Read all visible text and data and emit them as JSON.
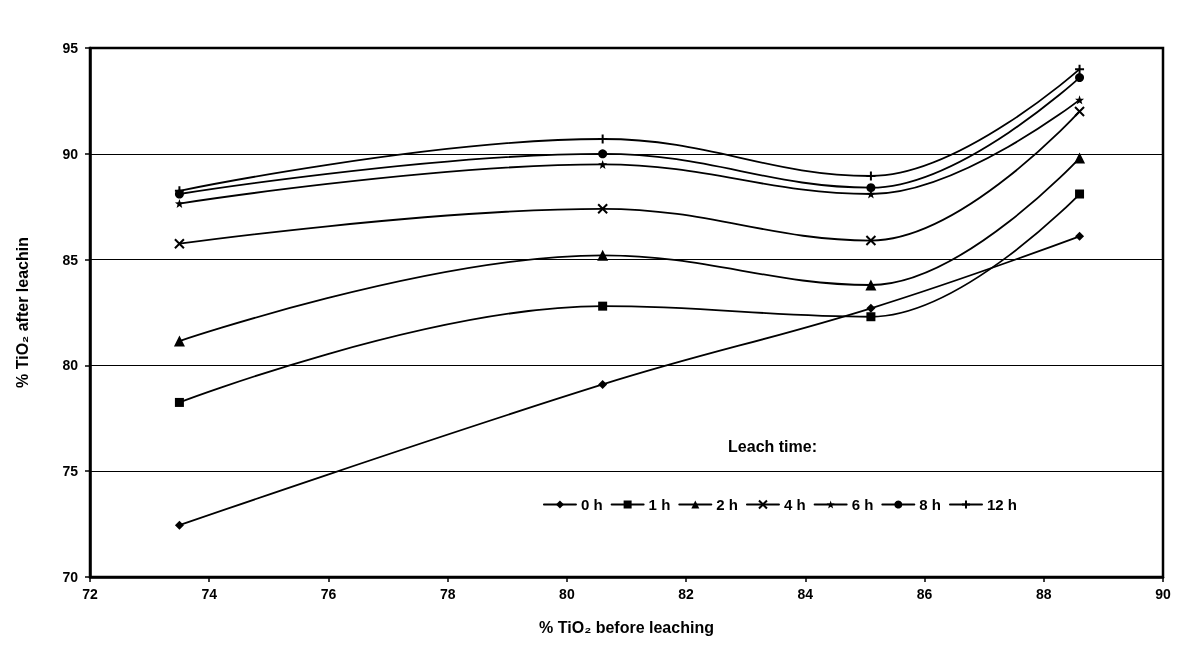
{
  "chart_data": {
    "type": "line",
    "xlabel": "% TiO₂ before leaching",
    "ylabel": "% TiO₂ after leachin",
    "legend_title": "Leach time:",
    "x": [
      73.5,
      80.6,
      85.1,
      88.6
    ],
    "series": [
      {
        "name": "0 h",
        "color": "#000000",
        "marker": "diamond",
        "values": [
          72.45,
          79.1,
          82.7,
          86.1
        ]
      },
      {
        "name": "1 h",
        "color": "#000000",
        "marker": "square",
        "values": [
          78.25,
          82.8,
          82.3,
          88.1
        ]
      },
      {
        "name": "2 h",
        "color": "#000000",
        "marker": "triangle",
        "values": [
          81.15,
          85.2,
          83.8,
          89.8
        ]
      },
      {
        "name": "4 h",
        "color": "#000000",
        "marker": "cross",
        "values": [
          85.75,
          87.4,
          85.9,
          92.0
        ]
      },
      {
        "name": "6 h",
        "color": "#000000",
        "marker": "star",
        "values": [
          87.65,
          89.5,
          88.1,
          92.55
        ]
      },
      {
        "name": "8 h",
        "color": "#000000",
        "marker": "circle",
        "values": [
          88.1,
          90.0,
          88.4,
          93.6
        ]
      },
      {
        "name": "12 h",
        "color": "#000000",
        "marker": "plus",
        "values": [
          88.25,
          90.7,
          88.95,
          94.0
        ]
      }
    ],
    "xlim": [
      72,
      90
    ],
    "xticks": [
      72,
      74,
      76,
      78,
      80,
      82,
      84,
      86,
      88,
      90
    ],
    "ylim": [
      70,
      95
    ],
    "yticks": [
      70,
      75,
      80,
      85,
      90,
      95
    ],
    "grid": "y",
    "legend": "bottom right",
    "line_style": "solid"
  }
}
